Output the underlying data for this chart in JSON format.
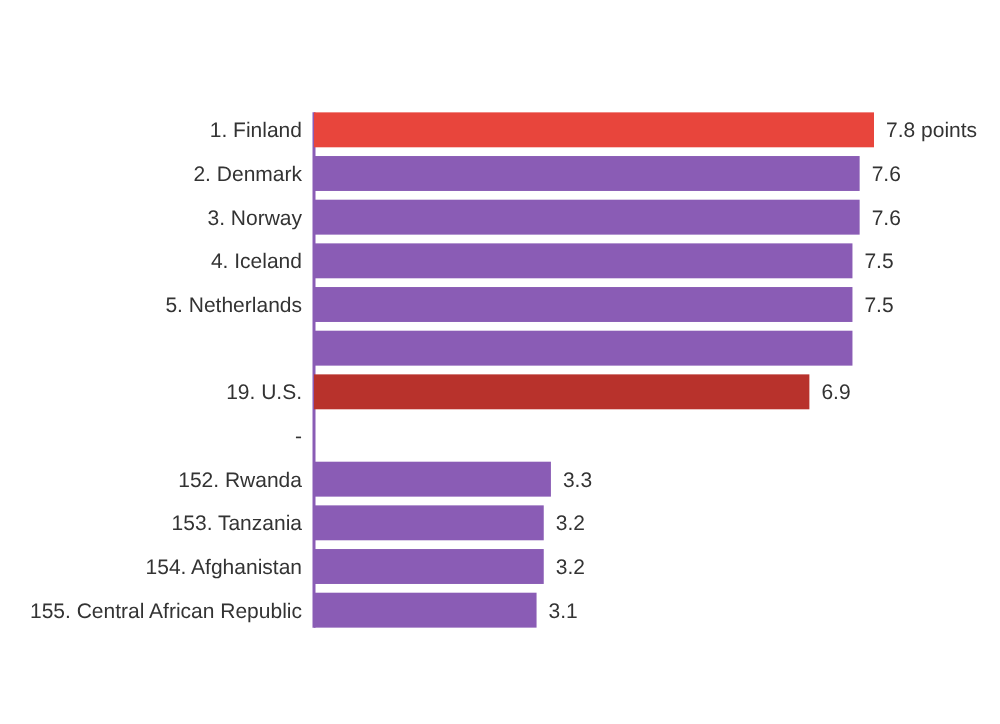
{
  "chart_data": {
    "type": "bar",
    "orientation": "horizontal",
    "categories": [
      "1. Finland",
      "2. Denmark",
      "3. Norway",
      "4. Iceland",
      "5. Netherlands",
      null,
      "19. U.S.",
      "-",
      "152. Rwanda",
      "153. Tanzania",
      "154. Afghanistan",
      "155. Central African Republic"
    ],
    "values": [
      7.8,
      7.6,
      7.6,
      7.5,
      7.5,
      7.5,
      6.9,
      null,
      3.3,
      3.2,
      3.2,
      3.1
    ],
    "colors": [
      "#e8453c",
      "#8a5cb5",
      "#8a5cb5",
      "#8a5cb5",
      "#8a5cb5",
      "#8a5cb5",
      "#b8322c",
      "#8a5cb5",
      "#8a5cb5",
      "#8a5cb5",
      "#8a5cb5",
      "#8a5cb5"
    ],
    "value_labels": [
      "7.8 points",
      "7.6",
      "7.6",
      "7.5",
      "7.5",
      null,
      "6.9",
      null,
      "3.3",
      "3.2",
      "3.2",
      "3.1"
    ],
    "xlim": [
      0,
      7.8
    ]
  }
}
